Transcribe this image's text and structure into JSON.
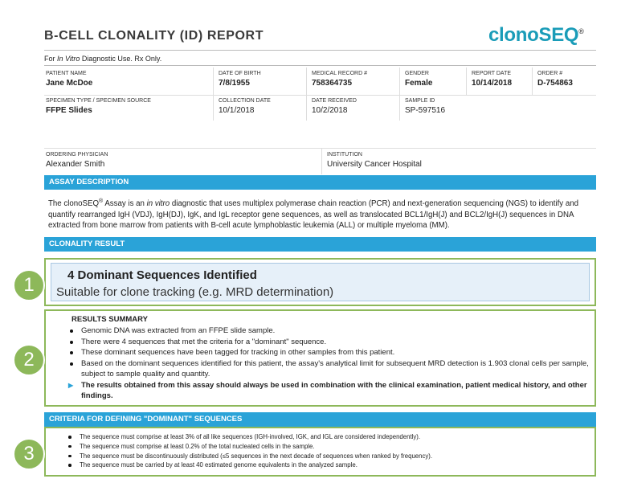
{
  "header": {
    "title": "B-CELL CLONALITY (ID) REPORT",
    "logo": "clonoSEQ",
    "logo_mark": "®"
  },
  "notice": [
    "For ",
    "In Vitro",
    " Diagnostic Use. Rx Only."
  ],
  "patient_table": {
    "rows": [
      [
        {
          "label": "PATIENT NAME",
          "value": "Jane McDoe"
        },
        {
          "label": "DATE OF BIRTH",
          "value": "7/8/1955"
        },
        {
          "label": "MEDICAL RECORD #",
          "value": "758364735"
        },
        {
          "label": "GENDER",
          "value": "Female"
        },
        {
          "label": "REPORT DATE",
          "value": "10/14/2018"
        },
        {
          "label": "ORDER #",
          "value": "D-754863"
        }
      ],
      [
        {
          "label": "SPECIMEN TYPE / SPECIMEN SOURCE",
          "value": "FFPE Slides"
        },
        {
          "label": "COLLECTION DATE",
          "value": "10/1/2018"
        },
        {
          "label": "DATE RECEIVED",
          "value": "10/2/2018"
        },
        {
          "label": "SAMPLE ID",
          "value": "SP-597516"
        }
      ]
    ]
  },
  "physician_table": [
    {
      "label": "ORDERING PHYSICIAN",
      "value": "Alexander Smith"
    },
    {
      "label": "INSTITUTION",
      "value": "University Cancer Hospital"
    }
  ],
  "assay_description": {
    "heading": "ASSAY DESCRIPTION",
    "text": [
      "The clonoSEQ",
      "®",
      " Assay is an ",
      "in vitro",
      " diagnostic that uses multiplex polymerase chain reaction (PCR) and next-generation sequencing (NGS) to identify and quantify rearranged IgH (VDJ), IgH(DJ), IgK, and IgL receptor gene sequences, as well as translocated BCL1/IgH(J) and BCL2/IgH(J) sequences in DNA extracted from bone marrow from patients with B-cell acute lymphoblastic leukemia (ALL) or multiple myeloma (MM)."
    ]
  },
  "clonality_result": {
    "heading": "CLONALITY RESULT",
    "number": "1",
    "headline": "4 Dominant Sequences Identified",
    "subtitle": "Suitable for clone tracking (e.g. MRD determination)"
  },
  "results_summary": {
    "number": "2",
    "heading": "RESULTS SUMMARY",
    "items": [
      "Genomic DNA was extracted from an FFPE slide sample.",
      "There were 4 sequences that met the criteria for a \"dominant\" sequence.",
      "These dominant sequences have been tagged for tracking in other samples from this patient.",
      "Based on the dominant sequences identified for this patient, the assay's analytical limit for subsequent MRD detection is 1.903 clonal cells per sample, subject to sample quality and quantity."
    ],
    "note": "The results obtained from this assay should always be used in combination with the clinical examination, patient medical history, and other findings."
  },
  "criteria": {
    "heading": "CRITERIA FOR DEFINING \"DOMINANT\" SEQUENCES",
    "number": "3",
    "items": [
      "The sequence must comprise at least 3% of all like sequences (IGH-involved, IGK, and IGL are considered independently).",
      "The sequence must comprise at least 0.2% of the total nucleated cells in the sample.",
      "The sequence must be discontinuously distributed (≤5 sequences in the next decade of sequences when ranked by frequency).",
      "The sequence must be carried by at least 40 estimated genome equivalents in the analyzed sample."
    ]
  }
}
